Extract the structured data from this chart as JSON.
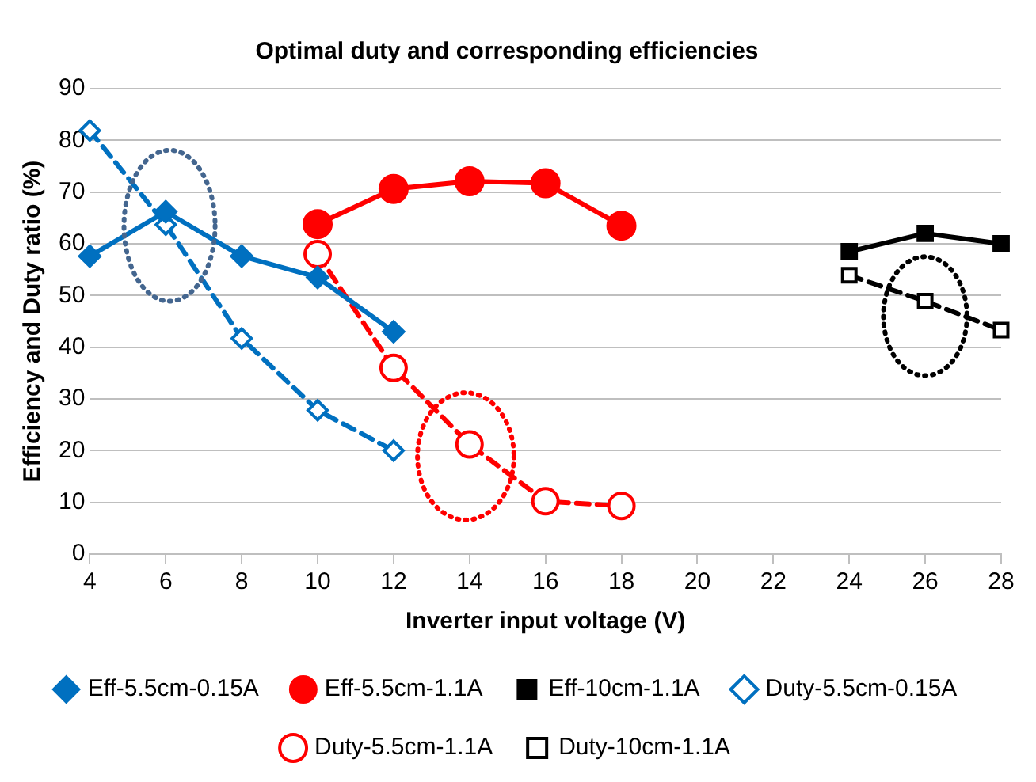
{
  "chart_data": {
    "type": "line",
    "title": "Optimal duty and corresponding efficiencies",
    "xlabel": "Inverter input voltage (V)",
    "ylabel": "Efficiency and Duty ratio (%)",
    "xlim": [
      4,
      28
    ],
    "xticks": [
      4,
      6,
      8,
      10,
      12,
      14,
      16,
      18,
      20,
      22,
      24,
      26,
      28
    ],
    "ylim": [
      0,
      90
    ],
    "yticks": [
      0,
      10,
      20,
      30,
      40,
      50,
      60,
      70,
      80,
      90
    ],
    "grid": "y",
    "legend": "bottom",
    "series": [
      {
        "name": "Eff-5.5cm-0.15A",
        "color": "#0070c0",
        "marker": "diamond",
        "line_style": "solid",
        "x": [
          4,
          6,
          8,
          10,
          12
        ],
        "values": [
          57.6,
          66.2,
          57.6,
          53.5,
          43
        ]
      },
      {
        "name": "Eff-5.5cm-1.1A",
        "color": "#ff0000",
        "marker": "circle",
        "line_style": "solid",
        "x": [
          10,
          12,
          14,
          16,
          18
        ],
        "values": [
          63.8,
          70.6,
          72.1,
          71.7,
          63.5
        ]
      },
      {
        "name": "Eff-10cm-1.1A",
        "color": "#000000",
        "marker": "square",
        "line_style": "solid",
        "x": [
          24,
          26,
          28
        ],
        "values": [
          58.5,
          62,
          60
        ]
      },
      {
        "name": "Duty-5.5cm-0.15A",
        "color": "#0070c0",
        "marker": "diamond",
        "line_style": "dashed",
        "x": [
          4,
          6,
          8,
          10,
          12
        ],
        "values": [
          81.9,
          63.7,
          41.7,
          27.8,
          20
        ]
      },
      {
        "name": "Duty-5.5cm-1.1A",
        "color": "#ff0000",
        "marker": "circle",
        "line_style": "dashed",
        "x": [
          10,
          12,
          14,
          16,
          18
        ],
        "values": [
          58,
          36,
          21.2,
          10.2,
          9.3
        ]
      },
      {
        "name": "Duty-10cm-1.1A",
        "color": "#000000",
        "marker": "square",
        "line_style": "dashed",
        "x": [
          24,
          26,
          28
        ],
        "values": [
          53.9,
          48.9,
          43.3
        ]
      }
    ]
  }
}
